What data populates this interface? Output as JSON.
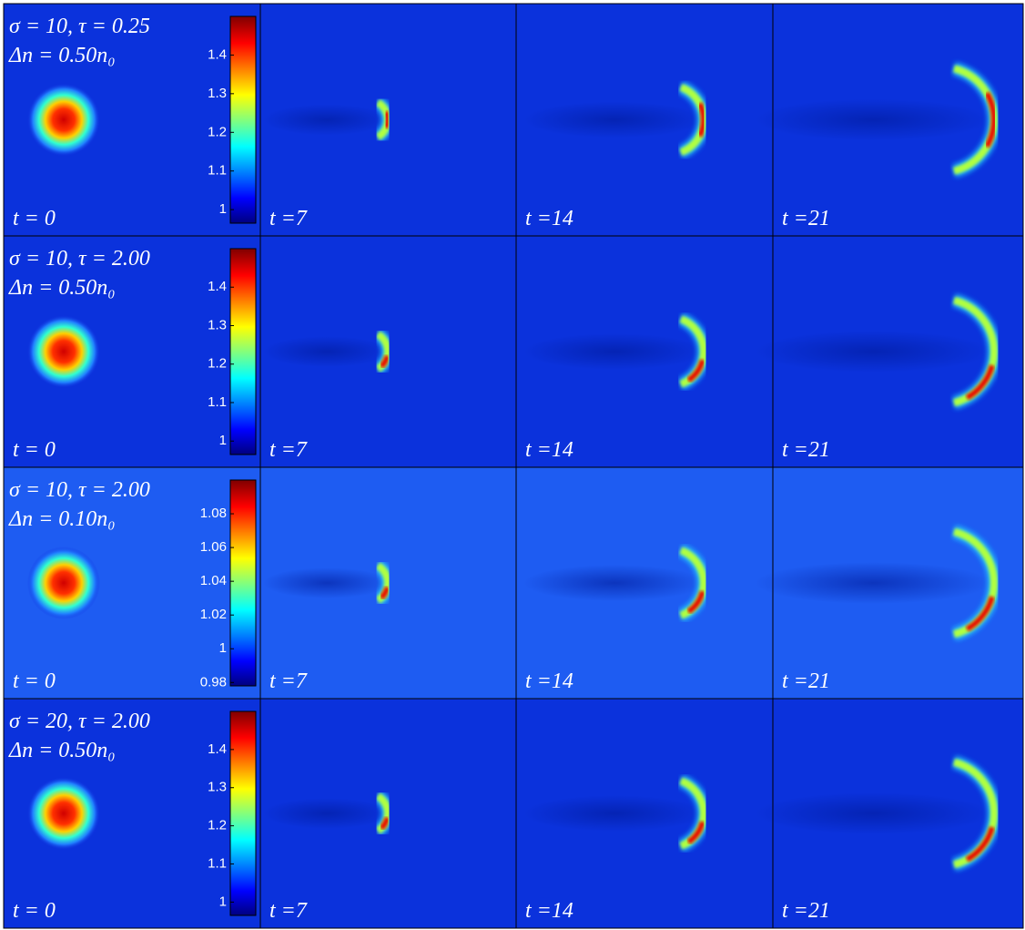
{
  "rows": [
    {
      "params": "σ = 10, τ = 0.25",
      "amplitude": "Δn = 0.50n₀",
      "colorbar": {
        "range": [
          0.965,
          1.5
        ],
        "ticks": [
          1,
          1.1,
          1.2,
          1.3,
          1.4
        ]
      },
      "times": [
        "t = 0",
        "t =7",
        "t =14",
        "t =21"
      ]
    },
    {
      "params": "σ = 10, τ = 2.00",
      "amplitude": "Δn = 0.50n₀",
      "colorbar": {
        "range": [
          0.965,
          1.5
        ],
        "ticks": [
          1,
          1.1,
          1.2,
          1.3,
          1.4
        ]
      },
      "times": [
        "t = 0",
        "t =7",
        "t =14",
        "t =21"
      ]
    },
    {
      "params": "σ = 10, τ = 2.00",
      "amplitude": "Δn = 0.10n₀",
      "colorbar": {
        "range": [
          0.978,
          1.1
        ],
        "ticks": [
          0.98,
          1,
          1.02,
          1.04,
          1.06,
          1.08
        ]
      },
      "times": [
        "t = 0",
        "t =7",
        "t =14",
        "t =21"
      ]
    },
    {
      "params": "σ = 20, τ = 2.00",
      "amplitude": "Δn = 0.50n₀",
      "colorbar": {
        "range": [
          0.965,
          1.5
        ],
        "ticks": [
          1,
          1.1,
          1.2,
          1.3,
          1.4
        ]
      },
      "times": [
        "t = 0",
        "t =7",
        "t =14",
        "t =21"
      ]
    }
  ]
}
